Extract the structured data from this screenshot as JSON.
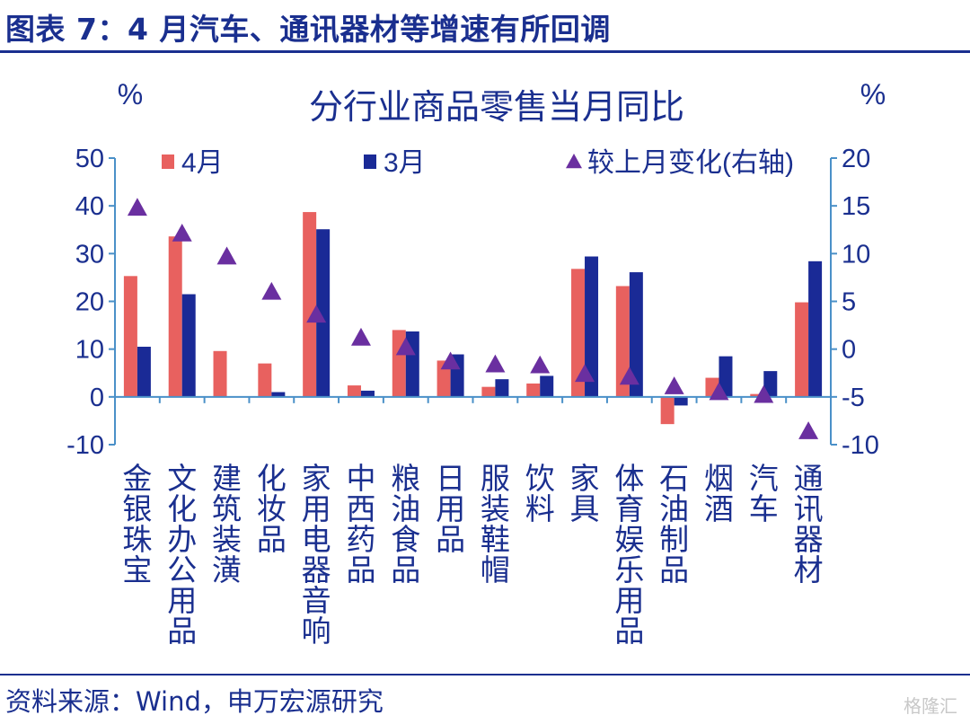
{
  "header": {
    "figure_title": "图表 7：4 月汽车、通讯器材等增速有所回调"
  },
  "footer": {
    "source": "资料来源：Wind，申万宏源研究",
    "watermark": "格隆汇"
  },
  "colors": {
    "series_apr": "#e8615f",
    "series_mar": "#1a2a96",
    "series_change": "#6a2fa0",
    "axis": "#4a90c8",
    "text": "#1a2f8f"
  },
  "chart_data": {
    "type": "bar",
    "title": "分行业商品零售当月同比",
    "ylabel_left": "%",
    "ylabel_right": "%",
    "ylim_left": [
      -10,
      50
    ],
    "ylim_right": [
      -10,
      20
    ],
    "yticks_left": [
      -10,
      0,
      10,
      20,
      30,
      40,
      50
    ],
    "yticks_right": [
      -10,
      -5,
      0,
      5,
      10,
      15,
      20
    ],
    "legend_position": "top",
    "grid": false,
    "categories": [
      "金银珠宝",
      "文化办公用品",
      "建筑装潢",
      "化妆品",
      "家用电器音响",
      "中西药品",
      "粮油食品",
      "日用品",
      "服装鞋帽",
      "饮料",
      "家具",
      "体育娱乐用品",
      "石油制品",
      "烟酒",
      "汽车",
      "通讯器材"
    ],
    "series": [
      {
        "name": "4月",
        "kind": "bar",
        "axis": "left",
        "values": [
          25.3,
          33.6,
          9.6,
          7.0,
          38.7,
          2.4,
          14.0,
          7.6,
          2.1,
          2.8,
          26.8,
          23.2,
          -5.7,
          4.0,
          0.6,
          19.8
        ]
      },
      {
        "name": "3月",
        "kind": "bar",
        "axis": "left",
        "values": [
          10.5,
          21.5,
          0.0,
          1.0,
          35.1,
          1.3,
          13.7,
          8.9,
          3.7,
          4.4,
          29.4,
          26.1,
          -1.8,
          8.5,
          5.4,
          28.4
        ]
      },
      {
        "name": "较上月变化(右轴)",
        "kind": "marker",
        "axis": "right",
        "values": [
          14.8,
          12.1,
          9.7,
          6.0,
          3.6,
          1.2,
          0.2,
          -1.3,
          -1.6,
          -1.7,
          -2.6,
          -2.9,
          -3.9,
          -4.5,
          -4.8,
          -8.6
        ]
      }
    ]
  }
}
